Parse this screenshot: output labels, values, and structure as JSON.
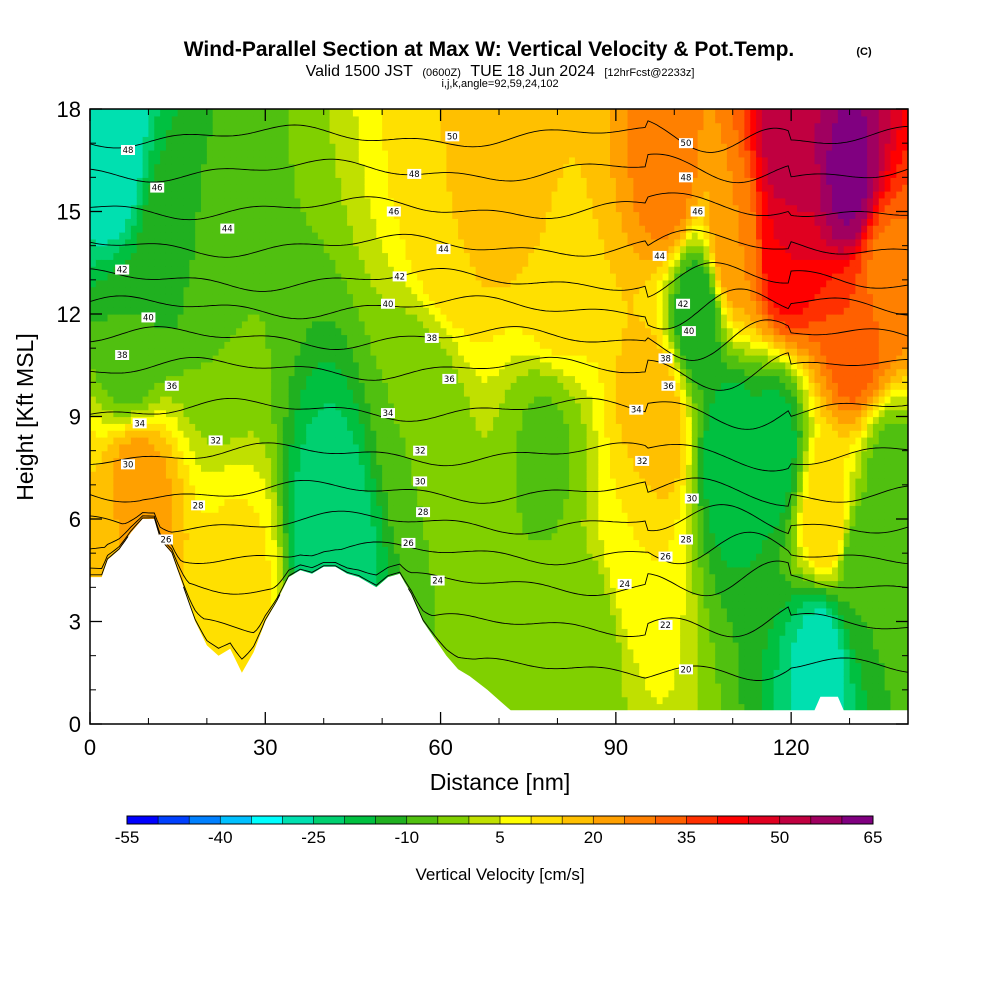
{
  "title": {
    "main": "Wind-Parallel Section at Max W: Vertical Velocity & Pot.Temp.",
    "copyright": "(C)",
    "valid_prefix": "Valid 1500 JST",
    "utc": "(0600Z)",
    "valid_date": "TUE 18 Jun 2024",
    "forecast": "[12hrFcst@2233z]",
    "indices": "i,j,k,angle=92,59,24,102"
  },
  "chart_data": {
    "type": "heatmap",
    "title": "Wind-Parallel Section at Max W: Vertical Velocity & Pot.Temp.",
    "xlabel": "Distance [nm]",
    "ylabel": "Height [Kft MSL]",
    "xlim": [
      0,
      140
    ],
    "ylim": [
      0,
      18
    ],
    "x_ticks": [
      "0",
      "30",
      "60",
      "90",
      "120"
    ],
    "x_tick_values": [
      0,
      30,
      60,
      90,
      120
    ],
    "y_ticks": [
      "0",
      "3",
      "6",
      "9",
      "12",
      "15",
      "18"
    ],
    "y_tick_values": [
      0,
      3,
      6,
      9,
      12,
      15,
      18
    ],
    "fill_variable": "Vertical Velocity [cm/s]",
    "contour_variable": "Potential Temperature",
    "colorbar": {
      "title": "Vertical Velocity [cm/s]",
      "labels": [
        "-55",
        "-40",
        "-25",
        "-10",
        "5",
        "20",
        "35",
        "50",
        "65"
      ],
      "min": -55,
      "max": 65,
      "step": 5,
      "colors": [
        "#0000ff",
        "#0040ff",
        "#0080ff",
        "#00c0ff",
        "#00ffff",
        "#00e0b0",
        "#00d070",
        "#00c040",
        "#20b020",
        "#50c010",
        "#80d000",
        "#c0e000",
        "#ffff00",
        "#ffe000",
        "#ffc000",
        "#ffa000",
        "#ff8000",
        "#ff6000",
        "#ff3000",
        "#ff0000",
        "#e00020",
        "#c00040",
        "#a00060",
        "#800080"
      ]
    },
    "terrain_kft": [
      [
        0,
        4.3
      ],
      [
        2,
        4.3
      ],
      [
        3,
        4.8
      ],
      [
        5,
        5.1
      ],
      [
        7,
        5.6
      ],
      [
        9,
        6.0
      ],
      [
        11,
        6.0
      ],
      [
        12,
        5.4
      ],
      [
        14,
        5.0
      ],
      [
        16,
        4.0
      ],
      [
        18,
        3.0
      ],
      [
        20,
        2.3
      ],
      [
        22,
        2.0
      ],
      [
        24,
        2.2
      ],
      [
        26,
        1.5
      ],
      [
        28,
        2.1
      ],
      [
        30,
        3.0
      ],
      [
        32,
        3.6
      ],
      [
        34,
        4.3
      ],
      [
        36,
        4.5
      ],
      [
        38,
        4.4
      ],
      [
        40,
        4.6
      ],
      [
        42,
        4.6
      ],
      [
        44,
        4.4
      ],
      [
        46,
        4.3
      ],
      [
        49,
        4.0
      ],
      [
        51,
        4.3
      ],
      [
        53,
        4.4
      ],
      [
        55,
        3.8
      ],
      [
        57,
        3.0
      ],
      [
        59,
        2.5
      ],
      [
        61,
        2.0
      ],
      [
        63,
        1.6
      ],
      [
        65,
        1.4
      ],
      [
        68,
        1.0
      ],
      [
        70,
        0.7
      ],
      [
        72,
        0.4
      ],
      [
        74,
        0.4
      ],
      [
        124,
        0.4
      ],
      [
        125,
        0.8
      ],
      [
        128,
        0.8
      ],
      [
        129,
        0.4
      ],
      [
        140,
        0.4
      ]
    ],
    "vertical_velocity_features": [
      {
        "x": 4,
        "y": 16.5,
        "value": -30
      },
      {
        "x": 7,
        "y": 11,
        "value": -10
      },
      {
        "x": 13,
        "y": 14,
        "value": -12
      },
      {
        "x": 8,
        "y": 6.7,
        "value": 25
      },
      {
        "x": 1,
        "y": 5.2,
        "value": 15
      },
      {
        "x": 26,
        "y": 3.8,
        "value": 12
      },
      {
        "x": 22,
        "y": 12,
        "value": -5
      },
      {
        "x": 41,
        "y": 5.2,
        "value": -25
      },
      {
        "x": 62,
        "y": 14.5,
        "value": 15
      },
      {
        "x": 80,
        "y": 13,
        "value": 15
      },
      {
        "x": 70,
        "y": 16,
        "value": 18
      },
      {
        "x": 57,
        "y": 9,
        "value": -5
      },
      {
        "x": 78,
        "y": 8,
        "value": -6
      },
      {
        "x": 93,
        "y": 5,
        "value": 10
      },
      {
        "x": 97,
        "y": 9,
        "value": 20
      },
      {
        "x": 99,
        "y": 16,
        "value": 28
      },
      {
        "x": 104,
        "y": 12,
        "value": -15
      },
      {
        "x": 110,
        "y": 8,
        "value": -20
      },
      {
        "x": 117,
        "y": 8,
        "value": -18
      },
      {
        "x": 110,
        "y": 14,
        "value": 25
      },
      {
        "x": 119,
        "y": 14,
        "value": 45
      },
      {
        "x": 120,
        "y": 16.5,
        "value": 55
      },
      {
        "x": 130,
        "y": 16,
        "value": 62
      },
      {
        "x": 131,
        "y": 11.5,
        "value": 35
      },
      {
        "x": 136,
        "y": 13,
        "value": 28
      },
      {
        "x": 126,
        "y": 6,
        "value": 15
      },
      {
        "x": 125,
        "y": 2.0,
        "value": -28
      },
      {
        "x": 132,
        "y": 4.5,
        "value": -10
      },
      {
        "x": 137,
        "y": 7,
        "value": -8
      },
      {
        "x": 86,
        "y": 2.5,
        "value": -3
      }
    ],
    "theta_levels": [
      {
        "level": 20,
        "anchor_height_kft": 1.6
      },
      {
        "level": 22,
        "anchor_height_kft": 2.9
      },
      {
        "level": 24,
        "anchor_height_kft": 4.1
      },
      {
        "level": 26,
        "anchor_height_kft": 5.0
      },
      {
        "level": 28,
        "anchor_height_kft": 5.9
      },
      {
        "level": 30,
        "anchor_height_kft": 6.8
      },
      {
        "level": 32,
        "anchor_height_kft": 7.9
      },
      {
        "level": 34,
        "anchor_height_kft": 9.2
      },
      {
        "level": 36,
        "anchor_height_kft": 10.4
      },
      {
        "level": 38,
        "anchor_height_kft": 11.3
      },
      {
        "level": 40,
        "anchor_height_kft": 12.2
      },
      {
        "level": 42,
        "anchor_height_kft": 13.0
      },
      {
        "level": 44,
        "anchor_height_kft": 14.0
      },
      {
        "level": 46,
        "anchor_height_kft": 15.1
      },
      {
        "level": 48,
        "anchor_height_kft": 16.2
      },
      {
        "level": 50,
        "anchor_height_kft": 17.2
      }
    ],
    "contour_labels": [
      {
        "text": "50",
        "x": 62,
        "y": 17.2
      },
      {
        "text": "50",
        "x": 102,
        "y": 17.0
      },
      {
        "text": "48",
        "x": 6.5,
        "y": 16.8
      },
      {
        "text": "48",
        "x": 55.5,
        "y": 16.1
      },
      {
        "text": "48",
        "x": 102,
        "y": 16.0
      },
      {
        "text": "46",
        "x": 11.5,
        "y": 15.7
      },
      {
        "text": "46",
        "x": 52,
        "y": 15.0
      },
      {
        "text": "46",
        "x": 104,
        "y": 15.0
      },
      {
        "text": "44",
        "x": 23.5,
        "y": 14.5
      },
      {
        "text": "44",
        "x": 60.5,
        "y": 13.9
      },
      {
        "text": "44",
        "x": 97.5,
        "y": 13.7
      },
      {
        "text": "42",
        "x": 5.5,
        "y": 13.3
      },
      {
        "text": "42",
        "x": 53,
        "y": 13.1
      },
      {
        "text": "42",
        "x": 101.5,
        "y": 12.3
      },
      {
        "text": "40",
        "x": 10,
        "y": 11.9
      },
      {
        "text": "40",
        "x": 51,
        "y": 12.3
      },
      {
        "text": "40",
        "x": 102.5,
        "y": 11.5
      },
      {
        "text": "38",
        "x": 5.5,
        "y": 10.8
      },
      {
        "text": "38",
        "x": 58.5,
        "y": 11.3
      },
      {
        "text": "38",
        "x": 98.5,
        "y": 10.7
      },
      {
        "text": "36",
        "x": 14,
        "y": 9.9
      },
      {
        "text": "36",
        "x": 61.5,
        "y": 10.1
      },
      {
        "text": "36",
        "x": 99,
        "y": 9.9
      },
      {
        "text": "34",
        "x": 8.5,
        "y": 8.8
      },
      {
        "text": "34",
        "x": 51,
        "y": 9.1
      },
      {
        "text": "34",
        "x": 93.5,
        "y": 9.2
      },
      {
        "text": "32",
        "x": 21.5,
        "y": 8.3
      },
      {
        "text": "32",
        "x": 56.5,
        "y": 8.0
      },
      {
        "text": "32",
        "x": 94.5,
        "y": 7.7
      },
      {
        "text": "30",
        "x": 6.5,
        "y": 7.6
      },
      {
        "text": "30",
        "x": 56.5,
        "y": 7.1
      },
      {
        "text": "30",
        "x": 103,
        "y": 6.6
      },
      {
        "text": "28",
        "x": 18.5,
        "y": 6.4
      },
      {
        "text": "28",
        "x": 57,
        "y": 6.2
      },
      {
        "text": "28",
        "x": 102,
        "y": 5.4
      },
      {
        "text": "26",
        "x": 13,
        "y": 5.4
      },
      {
        "text": "26",
        "x": 54.5,
        "y": 5.3
      },
      {
        "text": "26",
        "x": 98.5,
        "y": 4.9
      },
      {
        "text": "24",
        "x": 59.5,
        "y": 4.2
      },
      {
        "text": "24",
        "x": 91.5,
        "y": 4.1
      },
      {
        "text": "22",
        "x": 98.5,
        "y": 2.9
      },
      {
        "text": "20",
        "x": 102,
        "y": 1.6
      }
    ]
  },
  "colors": {
    "background": "#ffffff",
    "terrain": "#ffffff",
    "contour_line": "#000000",
    "axis": "#000000"
  }
}
